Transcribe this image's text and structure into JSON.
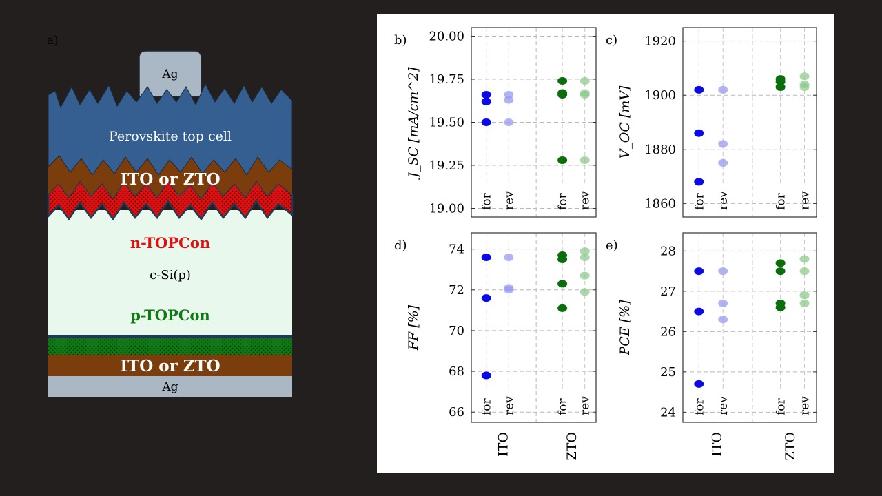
{
  "colors": {
    "background": "#221f1e",
    "ito_for": "#0a0ae6",
    "ito_rev": "#9a9af0",
    "zto_for": "#0a6e0a",
    "zto_rev": "#8fca8f",
    "perovskite": "#365f91",
    "ito_layer": "#7b3d0c",
    "n_topcon": "#e01010",
    "c_si": "#e8f8ec",
    "p_topcon": "#0f7a14",
    "ag": "#a9b8c4"
  },
  "diagram": {
    "panel_label": "a)",
    "ag_top": "Ag",
    "perovskite": "Perovskite top cell",
    "tco_top": "ITO or ZTO",
    "n_topcon": "n-TOPCon",
    "c_si": "c-Si(p)",
    "p_topcon": "p-TOPCon",
    "tco_bottom": "ITO or ZTO",
    "ag_bottom": "Ag"
  },
  "chart_data": [
    {
      "type": "scatter",
      "panel": "b)",
      "ylabel": "J_SC [mA/cm^2]",
      "ylim": [
        18.95,
        20.05
      ],
      "yticks": [
        "19.00",
        "19.25",
        "19.50",
        "19.75",
        "20.00"
      ],
      "ytick_values": [
        19.0,
        19.25,
        19.5,
        19.75,
        20.0
      ],
      "xcategories": [
        "for",
        "rev",
        "for",
        "rev"
      ],
      "groups": [
        "ITO",
        "ZTO"
      ],
      "grid": true,
      "series": [
        {
          "group": "ITO",
          "dir": "for",
          "values": [
            19.66,
            19.62,
            19.5
          ]
        },
        {
          "group": "ITO",
          "dir": "rev",
          "values": [
            19.66,
            19.63,
            19.5
          ]
        },
        {
          "group": "ZTO",
          "dir": "for",
          "values": [
            19.74,
            19.67,
            19.66,
            19.28
          ]
        },
        {
          "group": "ZTO",
          "dir": "rev",
          "values": [
            19.74,
            19.67,
            19.66,
            19.28
          ]
        }
      ]
    },
    {
      "type": "scatter",
      "panel": "c)",
      "ylabel": "V_OC [mV]",
      "ylim": [
        1855,
        1925
      ],
      "yticks": [
        "1860",
        "1880",
        "1900",
        "1920"
      ],
      "ytick_values": [
        1860,
        1880,
        1900,
        1920
      ],
      "xcategories": [
        "for",
        "rev",
        "for",
        "rev"
      ],
      "groups": [
        "ITO",
        "ZTO"
      ],
      "grid": true,
      "series": [
        {
          "group": "ITO",
          "dir": "for",
          "values": [
            1902,
            1886,
            1868
          ]
        },
        {
          "group": "ITO",
          "dir": "rev",
          "values": [
            1902,
            1882,
            1875
          ]
        },
        {
          "group": "ZTO",
          "dir": "for",
          "values": [
            1906,
            1905,
            1903
          ]
        },
        {
          "group": "ZTO",
          "dir": "rev",
          "values": [
            1907,
            1904,
            1903
          ]
        }
      ]
    },
    {
      "type": "scatter",
      "panel": "d)",
      "ylabel": "FF [%]",
      "ylim": [
        65.5,
        74.8
      ],
      "yticks": [
        "66",
        "68",
        "70",
        "72",
        "74"
      ],
      "ytick_values": [
        66,
        68,
        70,
        72,
        74
      ],
      "xcategories": [
        "for",
        "rev",
        "for",
        "rev"
      ],
      "groups": [
        "ITO",
        "ZTO"
      ],
      "grid": true,
      "series": [
        {
          "group": "ITO",
          "dir": "for",
          "values": [
            73.6,
            71.6,
            67.8
          ]
        },
        {
          "group": "ITO",
          "dir": "rev",
          "values": [
            73.6,
            72.1,
            72.0
          ]
        },
        {
          "group": "ZTO",
          "dir": "for",
          "values": [
            73.7,
            73.5,
            72.3,
            71.1
          ]
        },
        {
          "group": "ZTO",
          "dir": "rev",
          "values": [
            73.9,
            73.6,
            72.7,
            71.9
          ]
        }
      ]
    },
    {
      "type": "scatter",
      "panel": "e)",
      "ylabel": "PCE [%]",
      "ylim": [
        23.75,
        28.45
      ],
      "yticks": [
        "24",
        "25",
        "26",
        "27",
        "28"
      ],
      "ytick_values": [
        24,
        25,
        26,
        27,
        28
      ],
      "xcategories": [
        "for",
        "rev",
        "for",
        "rev"
      ],
      "groups": [
        "ITO",
        "ZTO"
      ],
      "grid": true,
      "series": [
        {
          "group": "ITO",
          "dir": "for",
          "values": [
            27.5,
            26.5,
            24.7
          ]
        },
        {
          "group": "ITO",
          "dir": "rev",
          "values": [
            27.5,
            26.7,
            26.3
          ]
        },
        {
          "group": "ZTO",
          "dir": "for",
          "values": [
            27.7,
            27.5,
            26.7,
            26.6
          ]
        },
        {
          "group": "ZTO",
          "dir": "rev",
          "values": [
            27.8,
            27.5,
            26.9,
            26.7
          ]
        }
      ]
    }
  ]
}
